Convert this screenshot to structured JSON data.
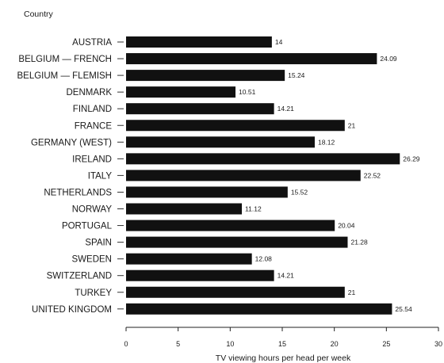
{
  "chart_data": {
    "type": "bar",
    "orientation": "horizontal",
    "category_axis_title": "Country",
    "xlabel": "TV viewing hours per head per week",
    "xlim": [
      0,
      30
    ],
    "xticks": [
      0,
      5,
      10,
      15,
      20,
      25,
      30
    ],
    "grid": false,
    "bar_color": "#111111",
    "categories": [
      "AUSTRIA",
      "BELGIUM — FRENCH",
      "BELGIUM — FLEMISH",
      "DENMARK",
      "FINLAND",
      "FRANCE",
      "GERMANY (WEST)",
      "IRELAND",
      "ITALY",
      "NETHERLANDS",
      "NORWAY",
      "PORTUGAL",
      "SPAIN",
      "SWEDEN",
      "SWITZERLAND",
      "TURKEY",
      "UNITED KINGDOM"
    ],
    "values": [
      14,
      24.09,
      15.24,
      10.51,
      14.21,
      21,
      18.12,
      26.29,
      22.52,
      15.52,
      11.12,
      20.04,
      21.28,
      12.08,
      14.21,
      21,
      25.54
    ],
    "value_labels": [
      "14",
      "24.09",
      "15.24",
      "10.51",
      "14.21",
      "21",
      "18.12",
      "26.29",
      "22.52",
      "15.52",
      "11.12",
      "20.04",
      "21.28",
      "12.08",
      "14.21",
      "21",
      "25.54"
    ]
  }
}
